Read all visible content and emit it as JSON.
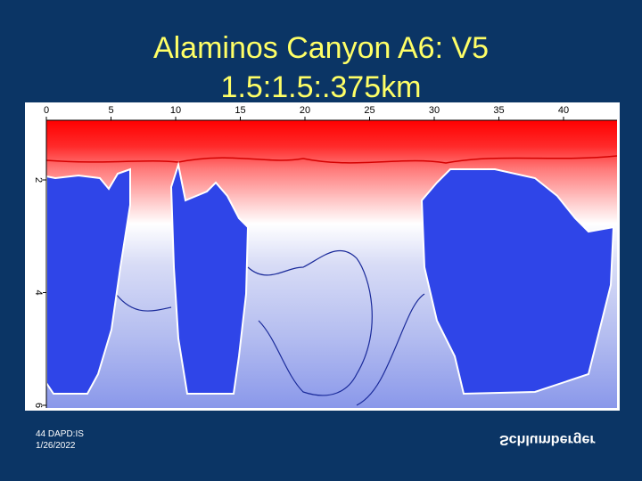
{
  "title": {
    "line1": "Alaminos Canyon A6:  V5",
    "line2": "1.5:1.5:.375km"
  },
  "image": {
    "xticks": [
      "0",
      "5",
      "10",
      "15",
      "20",
      "25",
      "30",
      "35",
      "40"
    ],
    "yticks": [
      "2",
      "4",
      "6"
    ]
  },
  "footer": {
    "slide": "44 DAPD:IS",
    "date": "1/26/2022",
    "logo": "Schlumberger"
  }
}
